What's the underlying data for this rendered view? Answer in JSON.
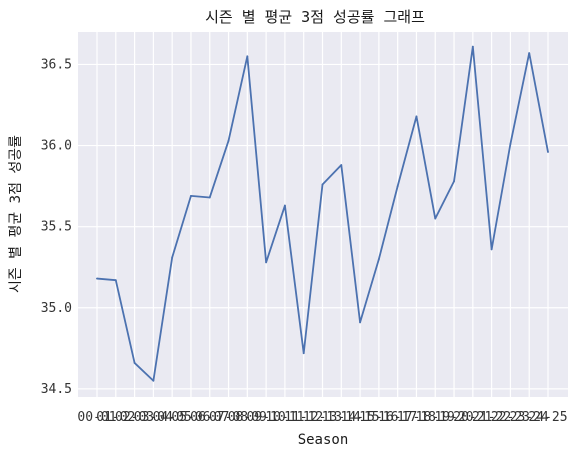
{
  "chart_data": {
    "type": "line",
    "title": "시즌 별 평균 3점 성공률 그래프",
    "xlabel": "Season",
    "ylabel": "시즌 별 평균 3점 성공률",
    "categories": [
      "00-01",
      "01-02",
      "02-03",
      "03-04",
      "04-05",
      "05-06",
      "06-07",
      "07-08",
      "08-09",
      "09-10",
      "10-11",
      "11-12",
      "12-13",
      "13-14",
      "14-15",
      "15-16",
      "16-17",
      "17-18",
      "18-19",
      "19-20",
      "20-21",
      "21-22",
      "22-23",
      "23-24",
      "24-25"
    ],
    "series": [
      {
        "color": "#4c72b0",
        "values": [
          35.18,
          35.17,
          34.66,
          34.55,
          35.31,
          35.69,
          35.68,
          36.03,
          36.55,
          35.28,
          35.63,
          34.72,
          35.76,
          35.88,
          34.91,
          35.3,
          35.75,
          36.18,
          35.55,
          35.78,
          36.61,
          35.36,
          36.01,
          36.57,
          35.96
        ]
      }
    ],
    "ylim": [
      34.45,
      36.7
    ],
    "yticks": [
      "34.5",
      "35.0",
      "35.5",
      "36.0",
      "36.5"
    ],
    "grid": true,
    "background": "#eaeaf2"
  }
}
